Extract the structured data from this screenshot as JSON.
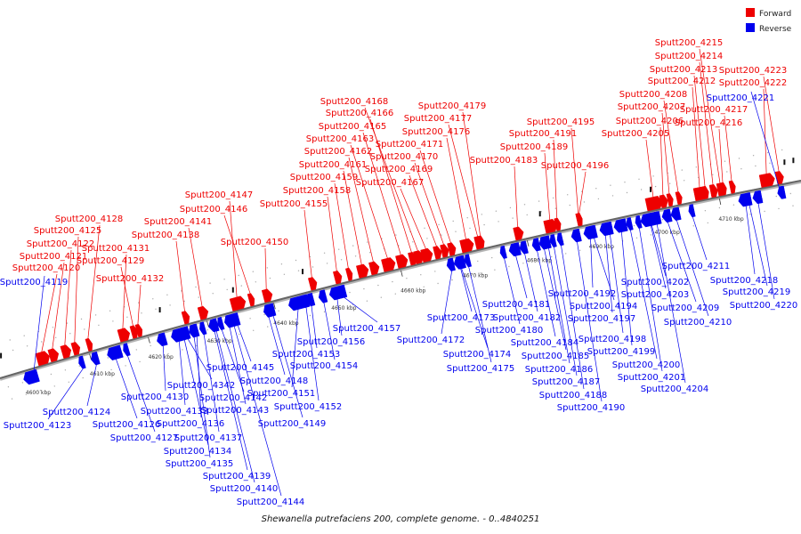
{
  "legend": {
    "forward_label": "Forward",
    "reverse_label": "Reverse",
    "forward_color": "#ee0000",
    "reverse_color": "#0000ee"
  },
  "caption": "Shewanella putrefaciens 200, complete genome. - 0..4840251",
  "scale_ticks": [
    "4600 kbp",
    "4610 kbp",
    "4620 kbp",
    "4630 kbp",
    "4640 kbp",
    "4650 kbp",
    "4660 kbp",
    "4670 kbp",
    "4680 kbp",
    "4690 kbp",
    "4700 kbp",
    "4710 kbp"
  ],
  "forward_genes": [
    "Sputt200_4120",
    "Sputt200_4121",
    "Sputt200_4122",
    "Sputt200_4125",
    "Sputt200_4128",
    "Sputt200_4131",
    "Sputt200_4129",
    "Sputt200_4132",
    "Sputt200_4138",
    "Sputt200_4141",
    "Sputt200_4147",
    "Sputt200_4146",
    "Sputt200_4150",
    "Sputt200_4155",
    "Sputt200_4158",
    "Sputt200_4159",
    "Sputt200_4161",
    "Sputt200_4162",
    "Sputt200_4163",
    "Sputt200_4165",
    "Sputt200_4166",
    "Sputt200_4168",
    "Sputt200_4167",
    "Sputt200_4169",
    "Sputt200_4170",
    "Sputt200_4171",
    "Sputt200_4176",
    "Sputt200_4177",
    "Sputt200_4179",
    "Sputt200_4183",
    "Sputt200_4189",
    "Sputt200_4191",
    "Sputt200_4195",
    "Sputt200_4196",
    "Sputt200_4205",
    "Sputt200_4206",
    "Sputt200_4207",
    "Sputt200_4208",
    "Sputt200_4212",
    "Sputt200_4213",
    "Sputt200_4214",
    "Sputt200_4215",
    "Sputt200_4216",
    "Sputt200_4217",
    "Sputt200_4222",
    "Sputt200_4223"
  ],
  "reverse_genes": [
    "Sputt200_4119",
    "Sputt200_4123",
    "Sputt200_4124",
    "Sputt200_4126",
    "Sputt200_4127",
    "Sputt200_4130",
    "Sputt200_4133",
    "Sputt200_4134",
    "Sputt200_4135",
    "Sputt200_4136",
    "Sputt200_4137",
    "Sputt200_4139",
    "Sputt200_4140",
    "Sputt200_4142",
    "Sputt200_4143",
    "Sputt200_4144",
    "Sputt200_4145",
    "Sputt200_4148",
    "Sputt200_4149",
    "Sputt200_4151",
    "Sputt200_4152",
    "Sputt200_4153",
    "Sputt200_4154",
    "Sputt200_4156",
    "Sputt200_4157",
    "Sputt200_4172",
    "Sputt200_4173",
    "Sputt200_4174",
    "Sputt200_4175",
    "Sputt200_4180",
    "Sputt200_4181",
    "Sputt200_4182",
    "Sputt200_4184",
    "Sputt200_4185",
    "Sputt200_4186",
    "Sputt200_4187",
    "Sputt200_4188",
    "Sputt200_4190",
    "Sputt200_4192",
    "Sputt200_4194",
    "Sputt200_4197",
    "Sputt200_4198",
    "Sputt200_4199",
    "Sputt200_4200",
    "Sputt200_4201",
    "Sputt200_4202",
    "Sputt200_4203",
    "Sputt200_4204",
    "Sputt200_4209",
    "Sputt200_4210",
    "Sputt200_4211",
    "Sputt200_4218",
    "Sputt200_4219",
    "Sputt200_4220",
    "Sputt200_4221",
    "Sputt200_4342"
  ]
}
